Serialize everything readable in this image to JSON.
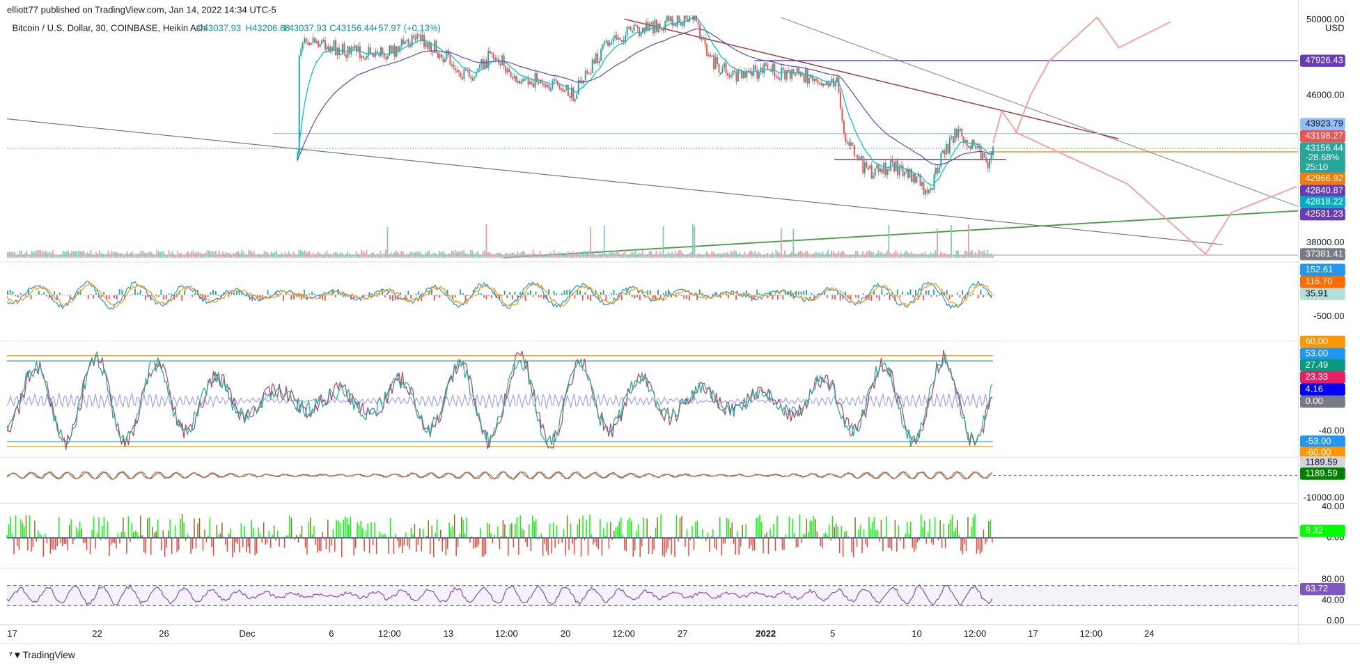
{
  "header": {
    "publisher": "elliott77 published on TradingView.com, Jan 14, 2022 14:34 UTC-5"
  },
  "legend": {
    "symbol": "Bitcoin / U.S. Dollar, 30, COINBASE, Heikin Ashi",
    "open": "O43037.93",
    "high": "H43206.88",
    "low": "L43037.93",
    "close": "C43156.44",
    "change": "+57.97 (+0.13%)"
  },
  "price_axis": {
    "labels": [
      "50000.00",
      "USD",
      "46000.00",
      "38000.00",
      "-500.00",
      "-40.00",
      "-10000.00",
      "40.00",
      "0.00",
      "80.00",
      "40.00",
      "0.00"
    ],
    "tags": [
      {
        "label": "47926.43",
        "color": "#673ab7"
      },
      {
        "label": "43923.79",
        "color": "#90bff9"
      },
      {
        "label": "43198.27",
        "color": "#ef5350"
      },
      {
        "label": "43156.44",
        "color": "#26a69a"
      },
      {
        "label": "-28.68%",
        "color": "#26a69a"
      },
      {
        "label": "25:10",
        "color": "#26a69a"
      },
      {
        "label": "42966.92",
        "color": "#f57c00"
      },
      {
        "label": "42840.87",
        "color": "#673ab7"
      },
      {
        "label": "42818.22",
        "color": "#00acc1"
      },
      {
        "label": "42531.23",
        "color": "#673ab7"
      },
      {
        "label": "37381.41",
        "color": "#787b86"
      },
      {
        "label": "152.61",
        "color": "#2196f3"
      },
      {
        "label": "116.70",
        "color": "#ff6d00"
      },
      {
        "label": "35.91",
        "color": "#b2dfdb"
      },
      {
        "label": "60.00",
        "color": "#ff9800"
      },
      {
        "label": "53.00",
        "color": "#2196f3"
      },
      {
        "label": "27.49",
        "color": "#089981"
      },
      {
        "label": "23.33",
        "color": "#e91e63"
      },
      {
        "label": "4.16",
        "color": "#0000ff"
      },
      {
        "label": "0.00",
        "color": "#787b86"
      },
      {
        "label": "-53.00",
        "color": "#2196f3"
      },
      {
        "label": "-60.00",
        "color": "#ff9800"
      },
      {
        "label": "1189.59",
        "color": "#d1d4dc"
      },
      {
        "label": "1189.59",
        "color": "#008000"
      },
      {
        "label": "8.32",
        "color": "#00ff00"
      },
      {
        "label": "63.72",
        "color": "#7e57c2"
      }
    ]
  },
  "time_axis": {
    "labels": [
      "17",
      "22",
      "26",
      "Dec",
      "6",
      "12:00",
      "13",
      "12:00",
      "20",
      "12:00",
      "27",
      "2022",
      "5",
      "10",
      "12:00",
      "17",
      "12:00",
      "24"
    ]
  },
  "footer": {
    "brand": "TradingView"
  }
}
